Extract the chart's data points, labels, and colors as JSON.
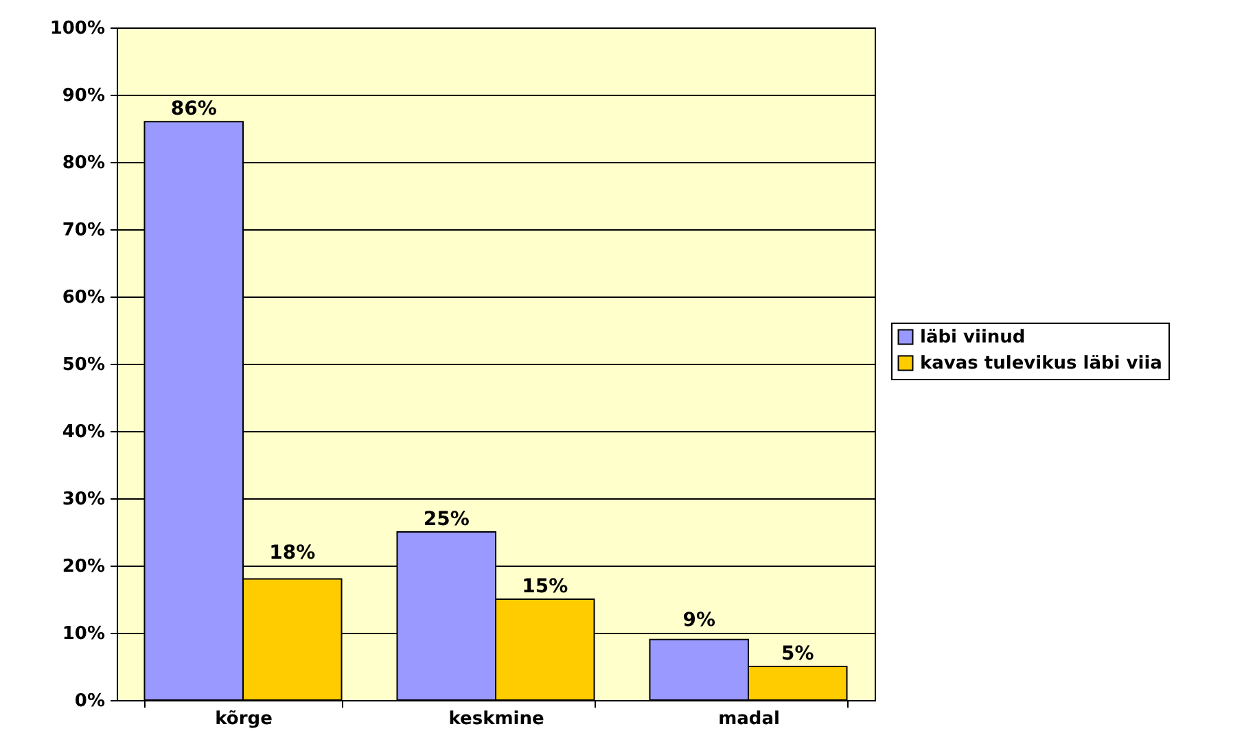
{
  "chart_data": {
    "type": "bar",
    "categories": [
      "kõrge",
      "keskmine",
      "madal"
    ],
    "series": [
      {
        "name": "läbi viinud",
        "color": "#9999ff",
        "values": [
          86,
          25,
          9
        ],
        "value_labels": [
          "86%",
          "25%",
          "9%"
        ]
      },
      {
        "name": "kavas tulevikus läbi viia",
        "color": "#ffcc00",
        "values": [
          18,
          15,
          5
        ],
        "value_labels": [
          "18%",
          "15%",
          "5%"
        ]
      }
    ],
    "ylim": [
      0,
      100
    ],
    "yticks": [
      {
        "value": 0,
        "label": "0%"
      },
      {
        "value": 10,
        "label": "10%"
      },
      {
        "value": 20,
        "label": "20%"
      },
      {
        "value": 30,
        "label": "30%"
      },
      {
        "value": 40,
        "label": "40%"
      },
      {
        "value": 50,
        "label": "50%"
      },
      {
        "value": 60,
        "label": "60%"
      },
      {
        "value": 70,
        "label": "70%"
      },
      {
        "value": 80,
        "label": "80%"
      },
      {
        "value": 90,
        "label": "90%"
      },
      {
        "value": 100,
        "label": "100%"
      }
    ],
    "grid": "y",
    "legend": "right"
  }
}
